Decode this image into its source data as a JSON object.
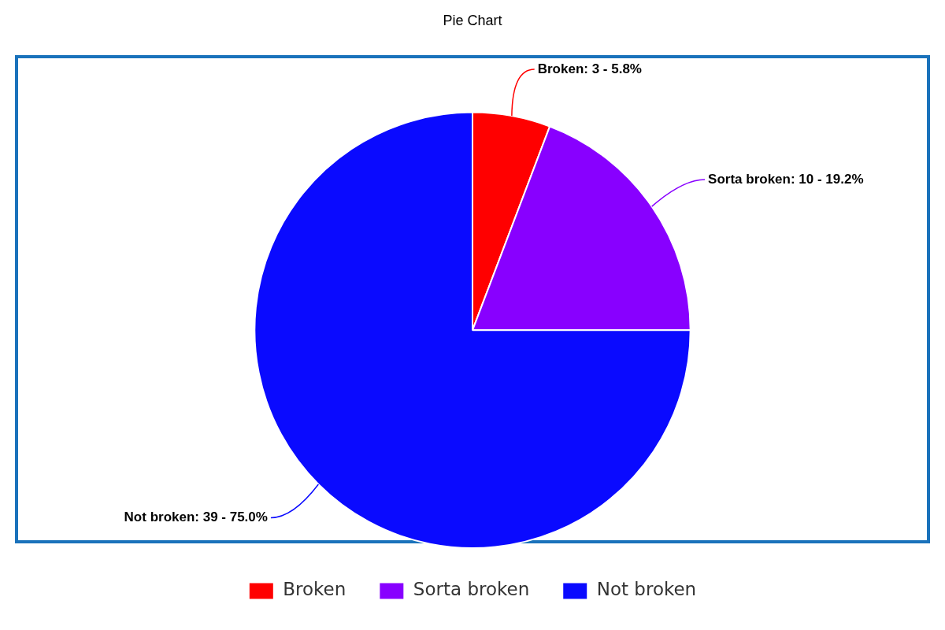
{
  "chart_data": {
    "type": "pie",
    "title": "Pie Chart",
    "categories": [
      "Broken",
      "Sorta broken",
      "Not broken"
    ],
    "values": [
      3,
      10,
      39
    ],
    "colors": [
      "#ff0000",
      "#8800ff",
      "#0a0aff"
    ],
    "value_labels": [
      "Broken: 3 - 5.8%",
      "Sorta broken: 10 - 19.2%",
      "Not broken: 39 - 75.0%"
    ],
    "legend": "bottom"
  }
}
